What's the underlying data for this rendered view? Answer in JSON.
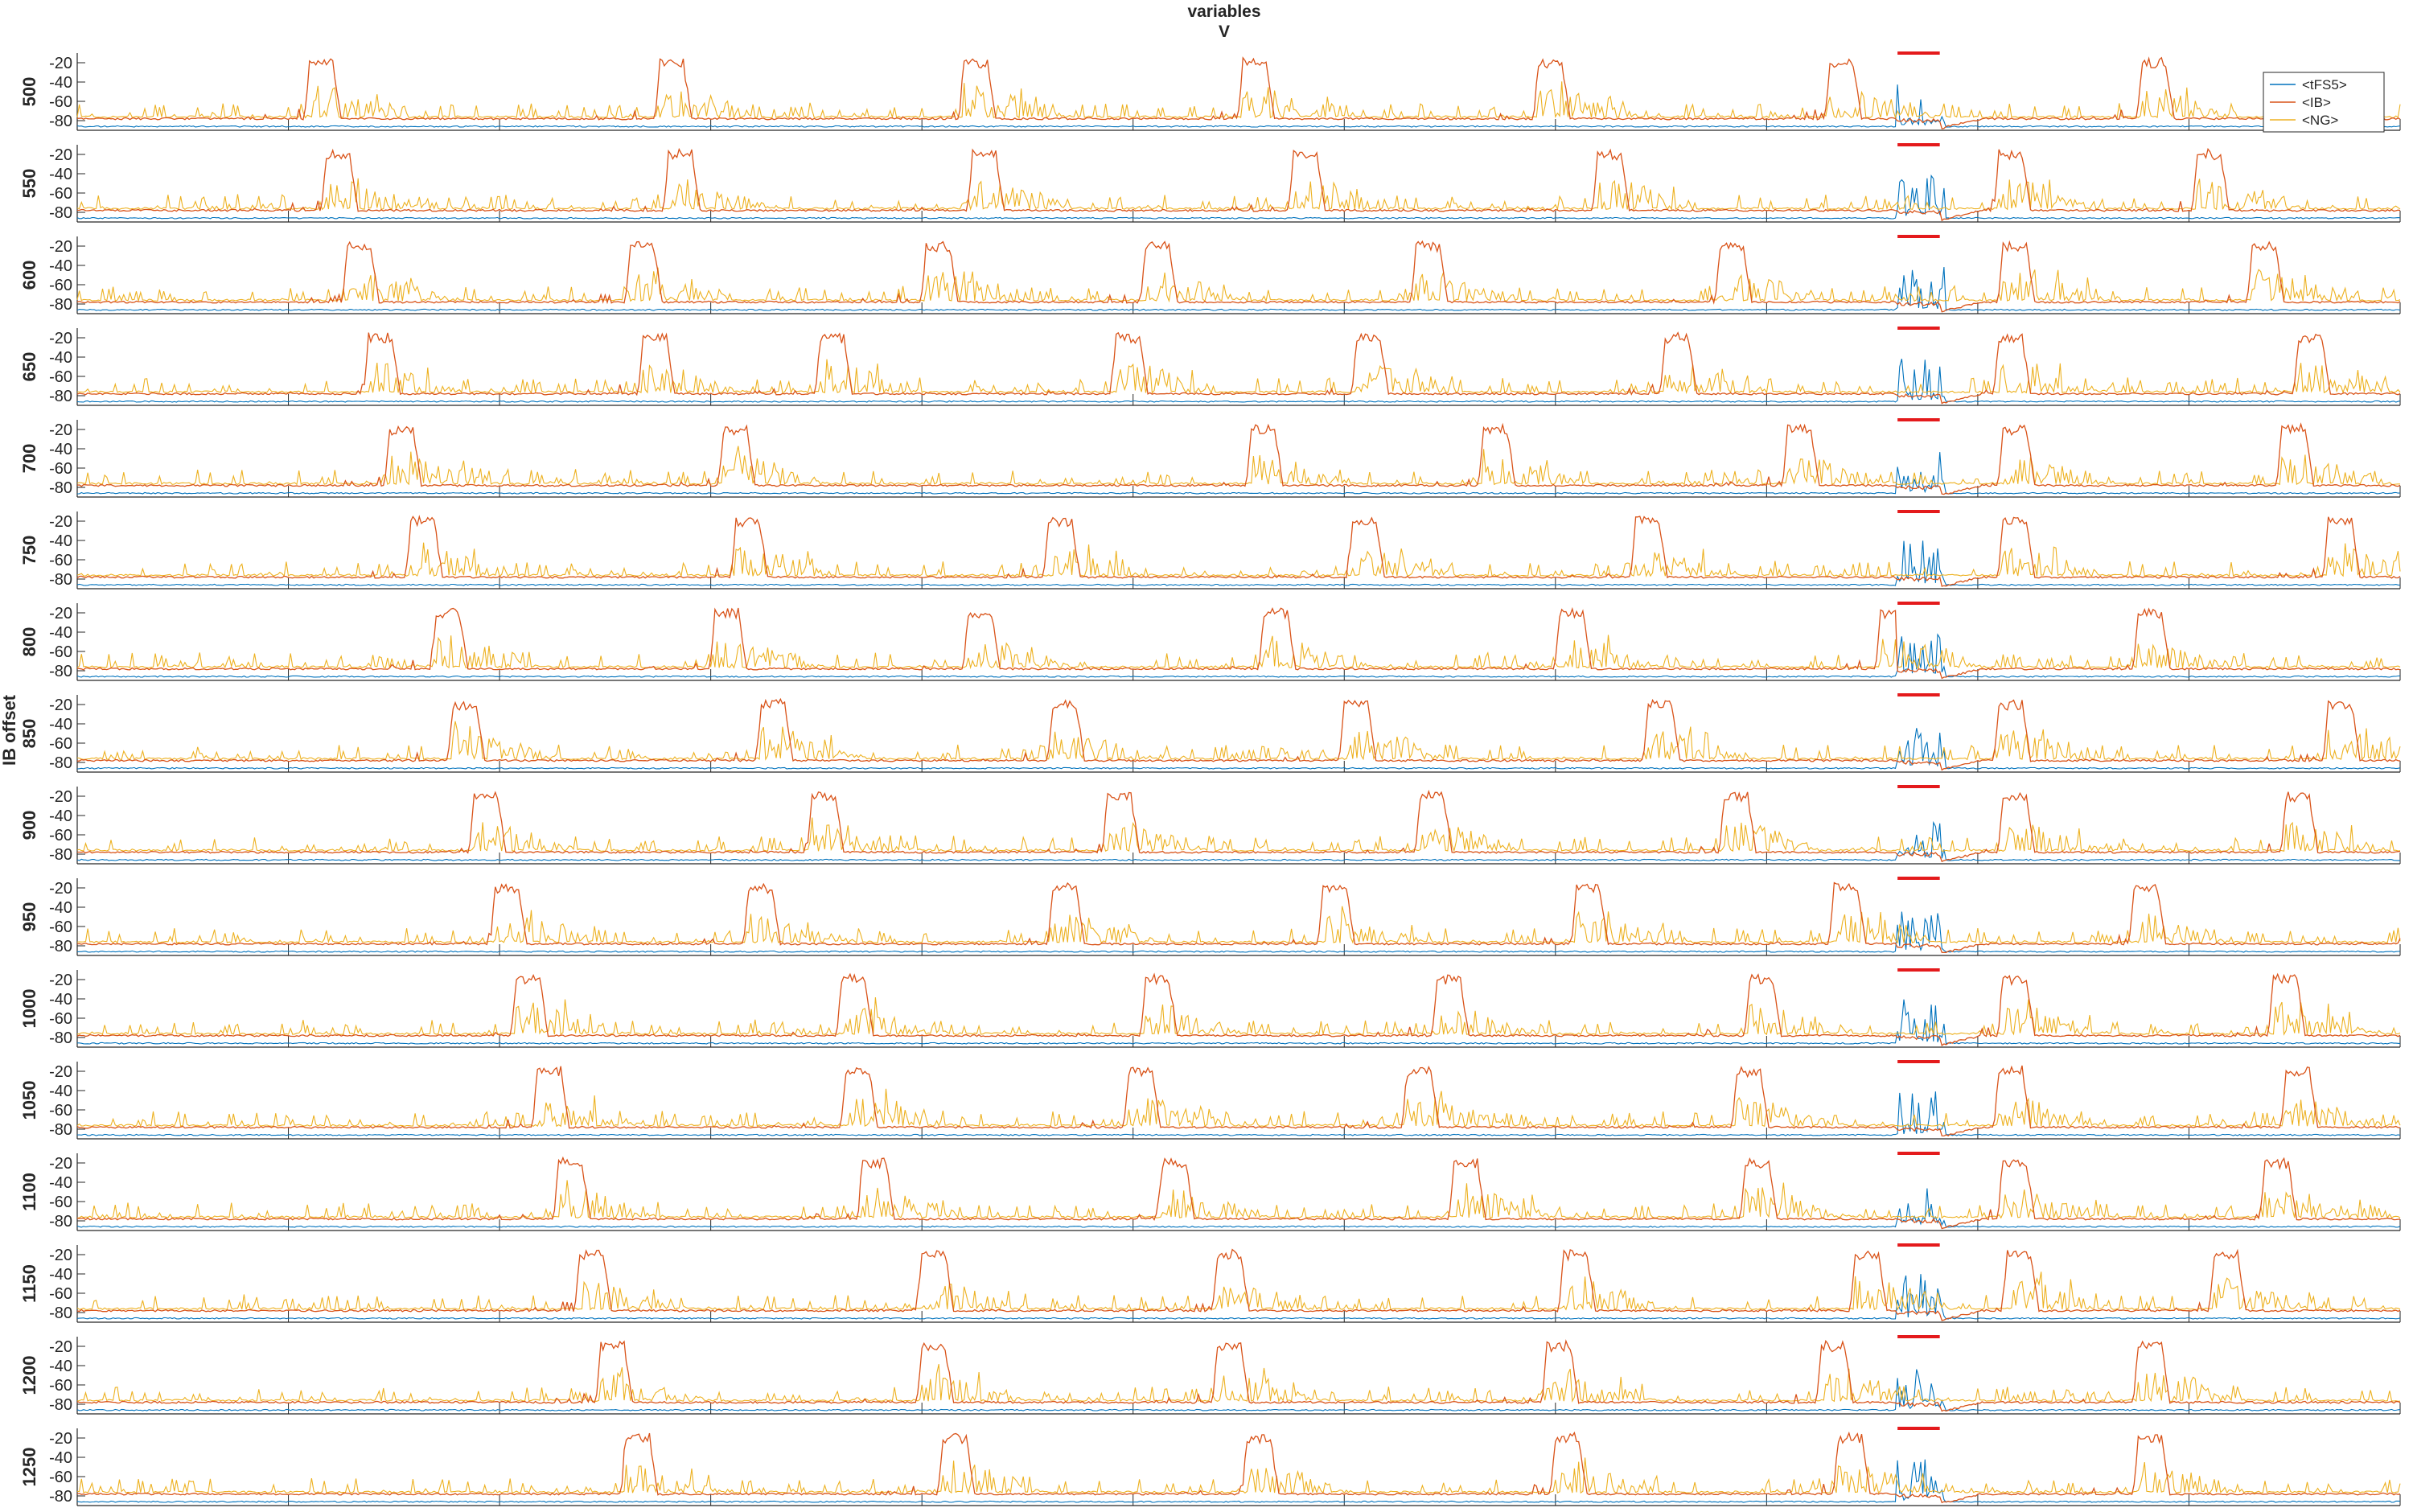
{
  "chart_data": {
    "type": "line",
    "title": "variables",
    "subtitle": "V",
    "ylabel": "IB offset",
    "xlabel": "",
    "xlim": [
      0,
      5500
    ],
    "x_ticks": [
      "0",
      "500",
      "1000",
      "1500",
      "2000",
      "2500",
      "3000",
      "3500",
      "4000",
      "4500",
      "5000",
      "5500"
    ],
    "ylim": [
      -90,
      -10
    ],
    "y_ticks": [
      "-20",
      "-40",
      "-60",
      "-80"
    ],
    "legend": {
      "placement": "top-right",
      "entries": [
        {
          "name": "<tFS5>",
          "color": "#0072BD"
        },
        {
          "name": "<IB>",
          "color": "#D95319"
        },
        {
          "name": "<NG>",
          "color": "#EDB120"
        }
      ]
    },
    "stimulus_marker": {
      "color": "#E41A1C",
      "x_start": 4310,
      "x_end": 4410,
      "tfs5_burst_end": 4420
    },
    "baselines": {
      "tfs5": -86,
      "ib": -78,
      "ng": -76
    },
    "peaks": {
      "ib_plateau": -20,
      "ng_peak": -60,
      "tfs5_burst_peak": -40
    },
    "offsets": [
      {
        "label": "500",
        "ib_bursts": [
          550,
          1380,
          2100,
          2760,
          3460,
          4150,
          4890
        ]
      },
      {
        "label": "550",
        "ib_bursts": [
          590,
          1400,
          2120,
          2880,
          3600,
          4550,
          5020
        ]
      },
      {
        "label": "600",
        "ib_bursts": [
          640,
          1310,
          2010,
          2530,
          3170,
          3890,
          4560,
          5150
        ]
      },
      {
        "label": "650",
        "ib_bursts": [
          690,
          1340,
          1760,
          2460,
          3030,
          3760,
          4550,
          5260
        ]
      },
      {
        "label": "700",
        "ib_bursts": [
          740,
          1530,
          2780,
          3330,
          4050,
          4560,
          5220
        ]
      },
      {
        "label": "750",
        "ib_bursts": [
          790,
          1560,
          2300,
          3020,
          3690,
          4560,
          5330
        ]
      },
      {
        "label": "800",
        "ib_bursts": [
          850,
          1510,
          2110,
          2810,
          3510,
          4270,
          4880
        ]
      },
      {
        "label": "850",
        "ib_bursts": [
          890,
          1620,
          2310,
          3000,
          3720,
          4550,
          5330
        ]
      },
      {
        "label": "900",
        "ib_bursts": [
          940,
          1740,
          2440,
          3180,
          3900,
          4560,
          5230
        ]
      },
      {
        "label": "950",
        "ib_bursts": [
          990,
          1590,
          2310,
          2950,
          3550,
          4160,
          4870,
          5540
        ]
      },
      {
        "label": "1000",
        "ib_bursts": [
          1040,
          1810,
          2530,
          3220,
          3960,
          4560,
          5200
        ]
      },
      {
        "label": "1050",
        "ib_bursts": [
          1090,
          1820,
          2490,
          3150,
          3930,
          4550,
          5230
        ]
      },
      {
        "label": "1100",
        "ib_bursts": [
          1140,
          1860,
          2570,
          3260,
          3950,
          4560,
          5180
        ]
      },
      {
        "label": "1150",
        "ib_bursts": [
          1190,
          2000,
          2700,
          3520,
          4210,
          4570,
          5060
        ]
      },
      {
        "label": "1200",
        "ib_bursts": [
          1240,
          2000,
          2700,
          3480,
          4130,
          4880
        ]
      },
      {
        "label": "1250",
        "ib_bursts": [
          1300,
          2050,
          2770,
          3500,
          4170,
          4880
        ]
      }
    ]
  }
}
